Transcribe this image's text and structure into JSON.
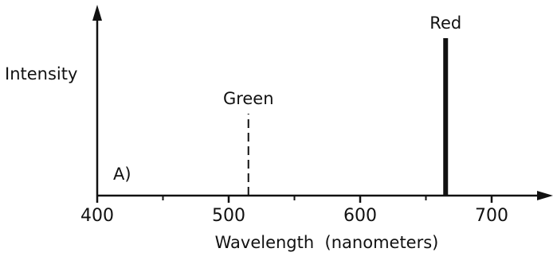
{
  "chart_data": {
    "type": "line",
    "panel_label": "A)",
    "xlabel": "Wavelength  (nanometers)",
    "ylabel": "Intensity",
    "xlim": [
      400,
      740
    ],
    "ylim": [
      0,
      1
    ],
    "x_ticks": [
      400,
      500,
      600,
      700
    ],
    "x_minor_ticks": [
      450,
      550,
      650
    ],
    "grid": false,
    "series": [
      {
        "name": "Green",
        "x": 515,
        "intensity": 0.52,
        "style": "dashed",
        "color": "#111111"
      },
      {
        "name": "Red",
        "x": 665,
        "intensity": 1.0,
        "style": "solid-thick",
        "color": "#111111"
      }
    ]
  }
}
